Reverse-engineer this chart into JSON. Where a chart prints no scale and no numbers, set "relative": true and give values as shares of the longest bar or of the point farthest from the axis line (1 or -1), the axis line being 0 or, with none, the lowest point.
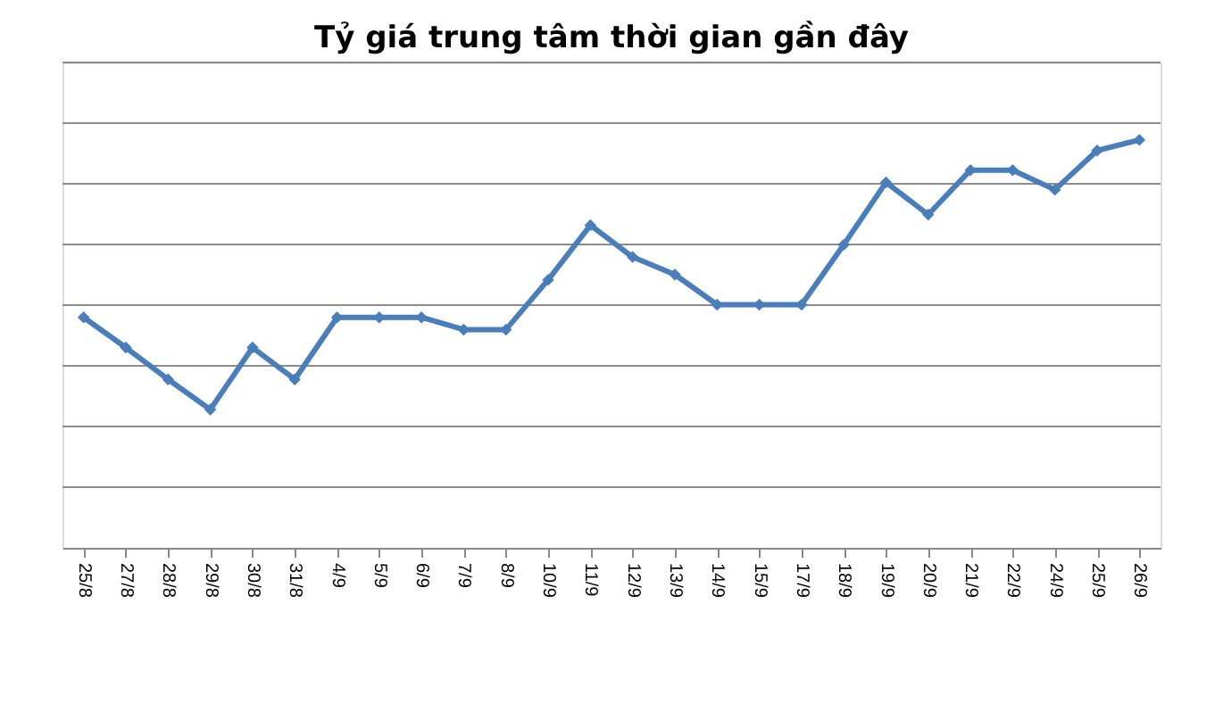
{
  "chart_data": {
    "type": "line",
    "title": "Tỷ giá trung tâm thời gian gần đây",
    "relative": true,
    "categories": [
      "25/8",
      "27/8",
      "28/8",
      "29/8",
      "30/8",
      "31/8",
      "4/9",
      "5/9",
      "6/9",
      "7/9",
      "8/9",
      "10/9",
      "11/9",
      "12/9",
      "13/9",
      "14/9",
      "15/9",
      "17/9",
      "18/9",
      "19/9",
      "20/9",
      "21/9",
      "22/9",
      "24/9",
      "25/9",
      "26/9"
    ],
    "series": [
      {
        "color": "#4a7ebb",
        "values": [
          0.565,
          0.491,
          0.413,
          0.339,
          0.491,
          0.413,
          0.565,
          0.565,
          0.565,
          0.535,
          0.535,
          0.657,
          0.791,
          0.713,
          0.67,
          0.596,
          0.596,
          0.596,
          0.743,
          0.896,
          0.817,
          0.926,
          0.926,
          0.878,
          0.974,
          1
        ]
      }
    ],
    "grid": "y",
    "marker": "diamond",
    "line_style": "solid",
    "legend": false,
    "tick_labels": "x"
  }
}
